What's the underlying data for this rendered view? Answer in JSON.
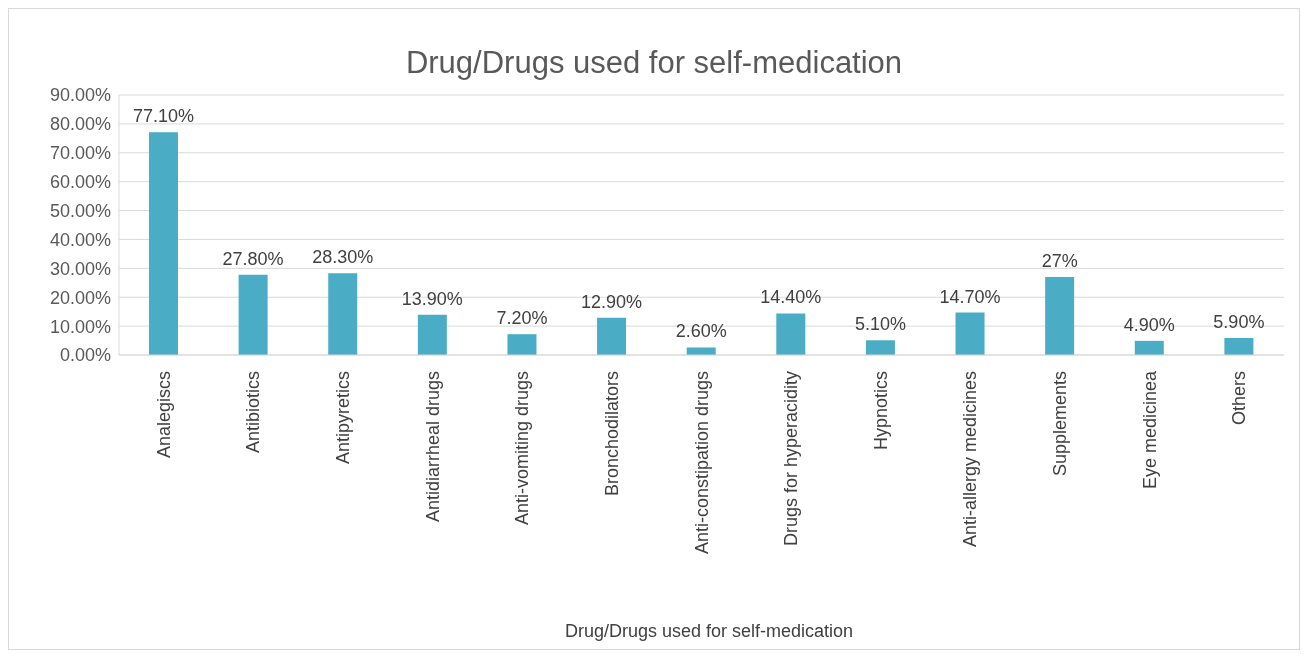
{
  "chart_data": {
    "type": "bar",
    "title": "Drug/Drugs used for self-medication",
    "xlabel": "Drug/Drugs used for self-medication",
    "categories": [
      "Analegiscs",
      "Antibiotics",
      "Antipyretics",
      "Antidiarrheal drugs",
      "Anti-vomiting drugs",
      "Bronchodilators",
      "Anti-constipation drugs",
      "Drugs for hyperacidity",
      "Hypnotics",
      "Anti-allergy medicines",
      "Supplements",
      "Eye medicinea",
      "Others"
    ],
    "values": [
      77.1,
      27.8,
      28.3,
      13.9,
      7.2,
      12.9,
      2.6,
      14.4,
      5.1,
      14.7,
      27,
      4.9,
      5.9
    ],
    "value_labels": [
      "77.10%",
      "27.80%",
      "28.30%",
      "13.90%",
      "7.20%",
      "12.90%",
      "2.60%",
      "14.40%",
      "5.10%",
      "14.70%",
      "27%",
      "4.90%",
      "5.90%"
    ],
    "color": "#4bacc6",
    "ylim": [
      0,
      90
    ],
    "yticks": [
      {
        "value": 0,
        "label": "0.00%"
      },
      {
        "value": 10,
        "label": "10.00%"
      },
      {
        "value": 20,
        "label": "20.00%"
      },
      {
        "value": 30,
        "label": "30.00%"
      },
      {
        "value": 40,
        "label": "40.00%"
      },
      {
        "value": 50,
        "label": "50.00%"
      },
      {
        "value": 60,
        "label": "60.00%"
      },
      {
        "value": 70,
        "label": "70.00%"
      },
      {
        "value": 80,
        "label": "80.00%"
      },
      {
        "value": 90,
        "label": "90.00%"
      }
    ],
    "grid": "y",
    "legend": false
  }
}
